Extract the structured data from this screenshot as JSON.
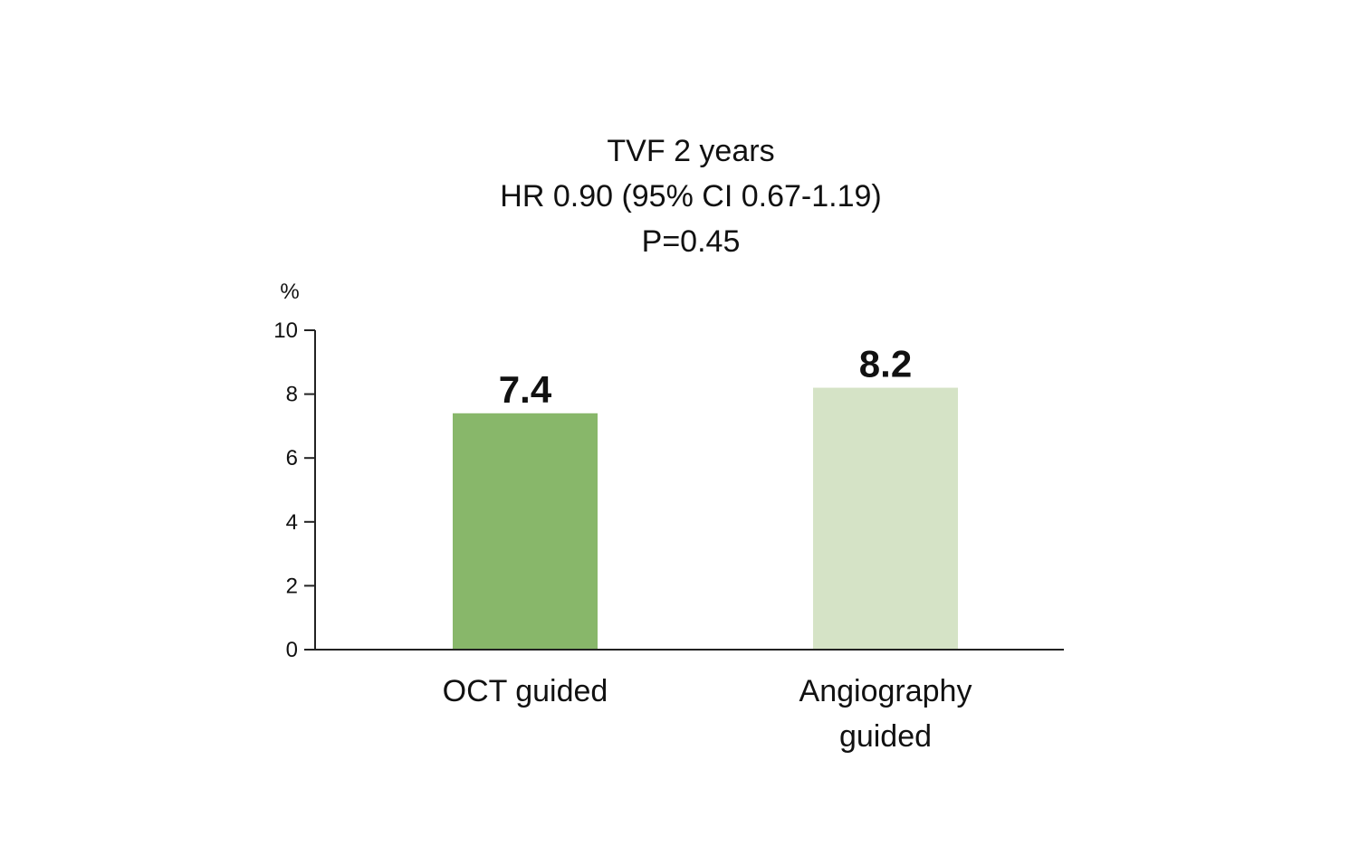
{
  "chart_data": {
    "type": "bar",
    "title_lines": [
      "TVF 2 years",
      "HR 0.90 (95% CI 0.67-1.19)",
      "P=0.45"
    ],
    "ylabel": "%",
    "xlabel": "",
    "ylim": [
      0,
      10
    ],
    "yticks": [
      0,
      2,
      4,
      6,
      8,
      10
    ],
    "grid": false,
    "legend": "none",
    "categories": [
      [
        "OCT guided"
      ],
      [
        "Angiography",
        "guided"
      ]
    ],
    "values": [
      7.4,
      8.2
    ],
    "value_labels": [
      "7.4",
      "8.2"
    ],
    "colors": [
      "#88b76a",
      "#d5e3c6"
    ]
  }
}
